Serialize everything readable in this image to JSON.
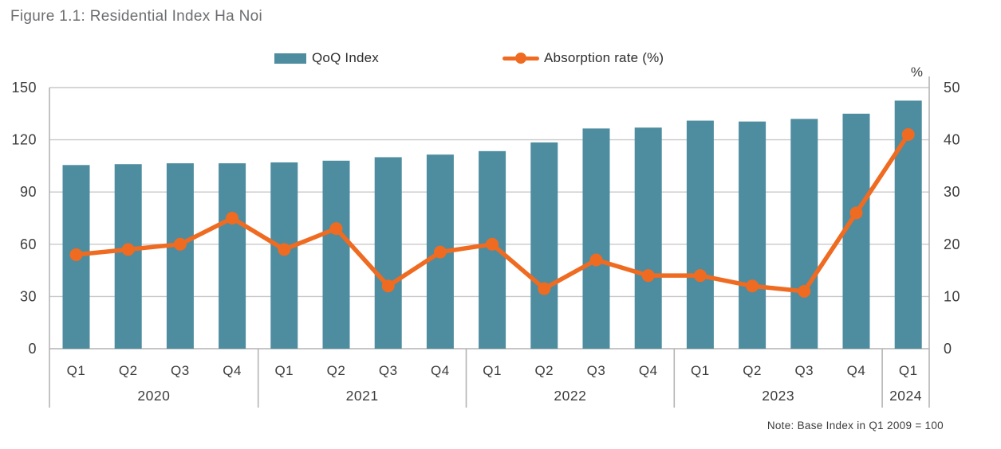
{
  "title": "Figure 1.1: Residential Index Ha Noi",
  "note": "Note: Base Index in Q1 2009 = 100",
  "colors": {
    "bar_teal": "#4e8ca0",
    "line_orange": "#ef6b21",
    "title_gray": "#6d6e71",
    "tick_text": "#3c3c3c",
    "gridline": "#c9c9ca",
    "frame": "#b4b4b5"
  },
  "chart_data": {
    "type": "bar+line combo",
    "quarters": [
      "Q1",
      "Q2",
      "Q3",
      "Q4",
      "Q1",
      "Q2",
      "Q3",
      "Q4",
      "Q1",
      "Q2",
      "Q3",
      "Q4",
      "Q1",
      "Q2",
      "Q3",
      "Q4",
      "Q1"
    ],
    "year_groups": [
      {
        "label": "2020",
        "count": 4
      },
      {
        "label": "2021",
        "count": 4
      },
      {
        "label": "2022",
        "count": 4
      },
      {
        "label": "2023",
        "count": 4
      },
      {
        "label": "2024",
        "count": 1
      }
    ],
    "series": [
      {
        "name": "QoQ Index",
        "type": "bar",
        "axis": "left",
        "color": "#4e8ca0",
        "values": [
          105.5,
          106,
          106.5,
          106.5,
          107,
          108,
          110,
          111.5,
          113.5,
          118.5,
          126.5,
          127,
          131,
          130.5,
          132,
          135,
          142.5
        ]
      },
      {
        "name": "Absorption rate (%)",
        "type": "line",
        "axis": "right",
        "color": "#ef6b21",
        "values": [
          18,
          19,
          20,
          25,
          19,
          23,
          12,
          18.5,
          20,
          11.5,
          17,
          14,
          14,
          12,
          11,
          26,
          41
        ]
      }
    ],
    "left_axis": {
      "min": 0,
      "max": 150,
      "ticks": [
        0,
        30,
        60,
        90,
        120,
        150
      ]
    },
    "right_axis": {
      "min": 0,
      "max": 50,
      "ticks": [
        0,
        10,
        20,
        30,
        40,
        50
      ],
      "unit": "%"
    },
    "grid": "horizontal only",
    "legend_position": "top"
  }
}
